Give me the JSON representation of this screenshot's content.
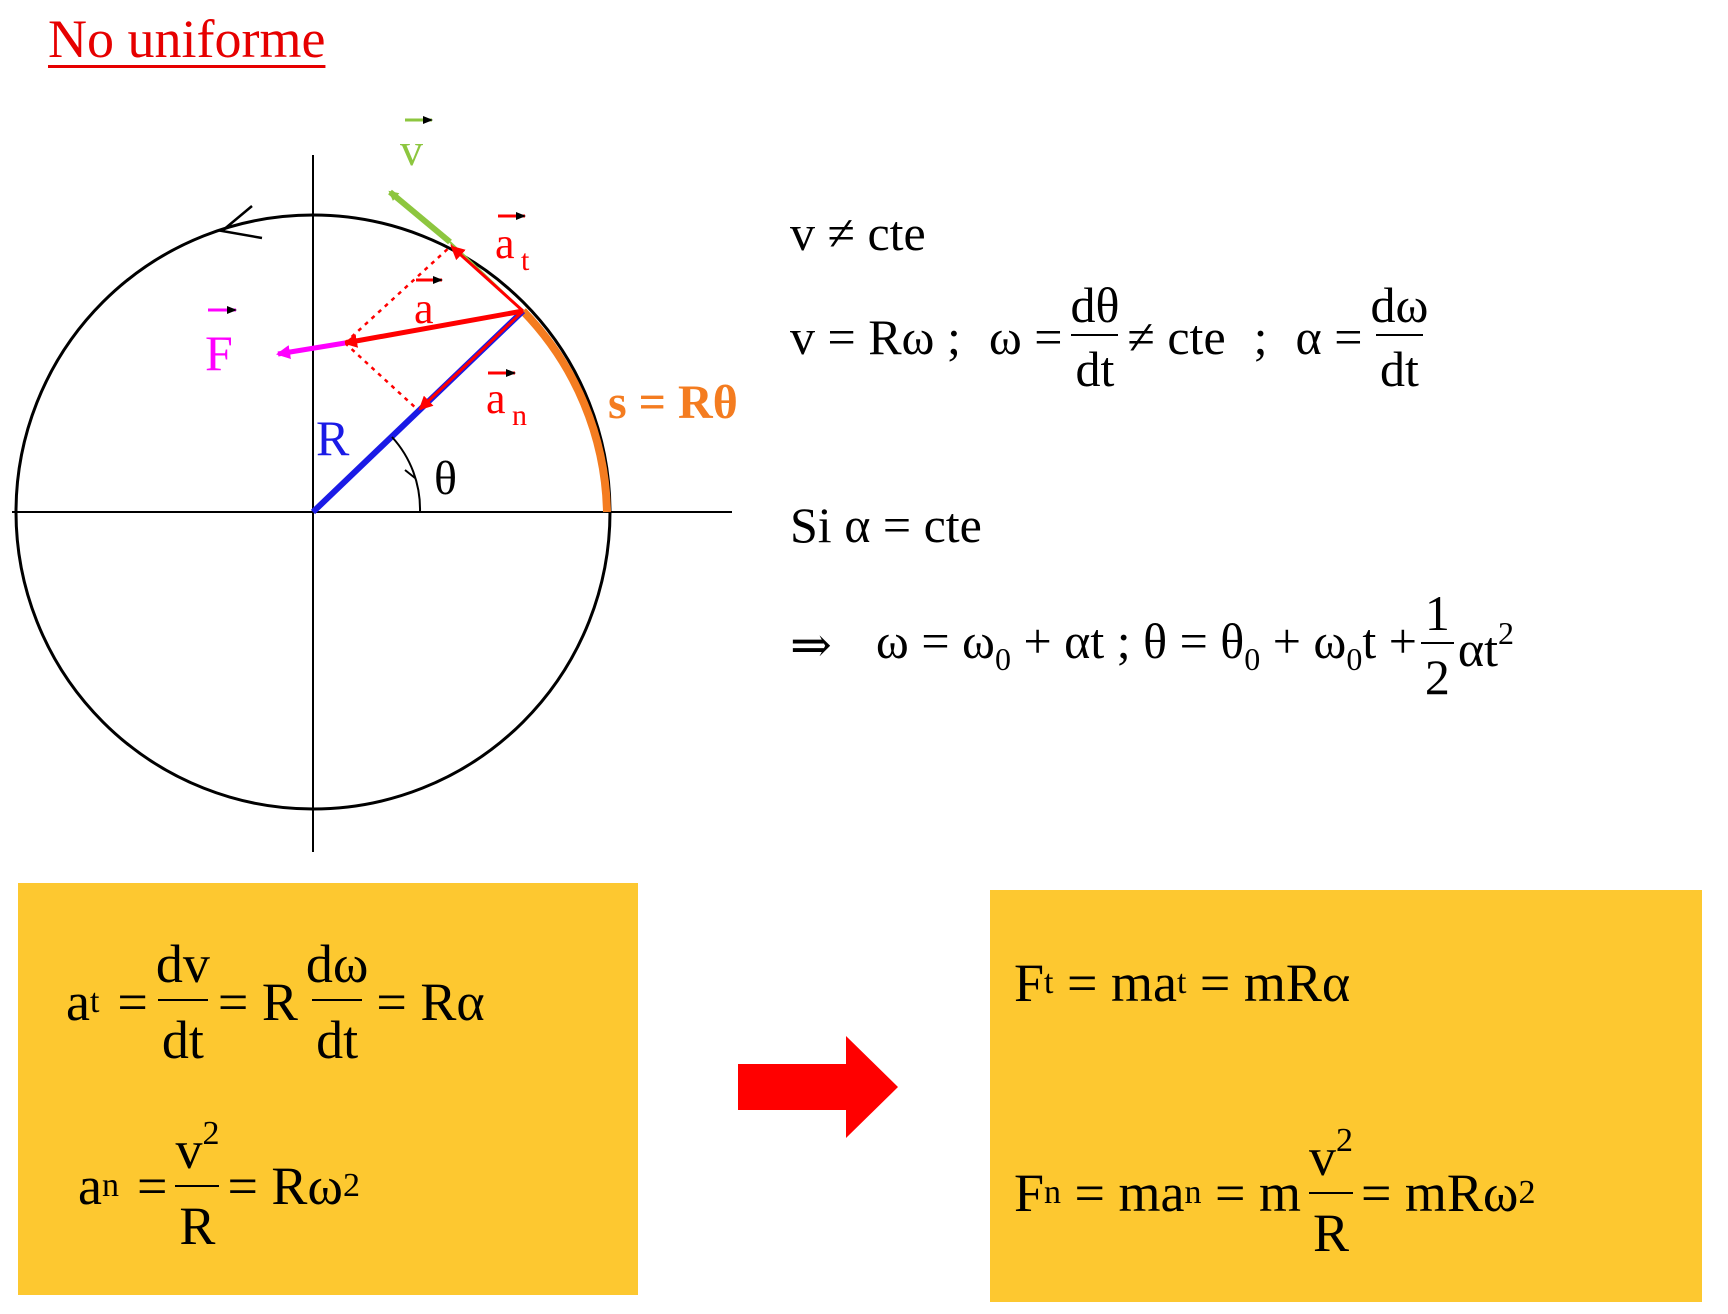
{
  "title": "No uniforme",
  "colors": {
    "title": "#e60000",
    "box": "#fdc830",
    "arrow": "#ff0000",
    "velocity": "#8dc63f",
    "radius": "#1a1ae6",
    "arc": "#f47c20",
    "force": "#ff00ff",
    "accel": "#ff0000"
  },
  "diagram": {
    "labels": {
      "v": "v",
      "at": "a",
      "at_sub": "t",
      "a": "a",
      "an": "a",
      "an_sub": "n",
      "F": "F",
      "R": "R",
      "theta": "θ",
      "arc": "s = Rθ"
    }
  },
  "equations": {
    "line1": "v ≠ cte",
    "line2": {
      "part1": "v = Rω  ;",
      "omega": "ω =",
      "dtheta": "dθ",
      "dt1": "dt",
      "neq": "≠ cte",
      "semi": ";",
      "alpha": "α =",
      "domega": "dω",
      "dt2": "dt"
    },
    "line3": "Si α = cte",
    "line4": {
      "implies": "⇒",
      "w": "ω = ω",
      "w_sub": "0",
      "w_rest": " + αt ; θ = θ",
      "th_sub": "0",
      "th_mid": " + ω",
      "w0_sub": "0",
      "th_rest": "t +",
      "one": "1",
      "two": "2",
      "at2": "αt",
      "sq": "2"
    }
  },
  "box_left": {
    "at": {
      "a": "a",
      "sub": "t",
      "eq1": "=",
      "dv": "dv",
      "dt1": "dt",
      "eq2": "= R",
      "dw": "dω",
      "dt2": "dt",
      "end": "= Rα"
    },
    "an": {
      "a": "a",
      "sub": "n",
      "eq1": "=",
      "v2": "v",
      "v2_sup": "2",
      "R": "R",
      "end": "= Rω",
      "end_sup": "2"
    }
  },
  "box_right": {
    "Ft": {
      "F": "F",
      "sub": "t",
      "mid": " = ma",
      "mid_sub": "t",
      "end": " = mRα"
    },
    "Fn": {
      "F": "F",
      "sub": "n",
      "mid": " = ma",
      "mid_sub": "n",
      "eqm": " = m",
      "v2": "v",
      "v2_sup": "2",
      "R": "R",
      "end": "= mRω",
      "end_sup": "2"
    }
  }
}
